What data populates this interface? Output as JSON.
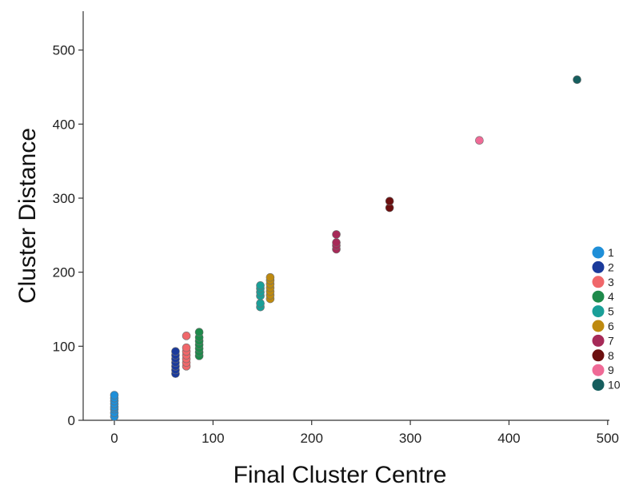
{
  "chart_data": {
    "type": "scatter",
    "title": "",
    "xlabel": "Final Cluster Centre",
    "ylabel": "Cluster Distance",
    "xlim": [
      -30,
      520
    ],
    "ylim": [
      0,
      550
    ],
    "xticks": [
      0,
      100,
      200,
      300,
      400,
      500
    ],
    "yticks": [
      0,
      100,
      200,
      300,
      400,
      500
    ],
    "grid": false,
    "legend_position": "right",
    "series": [
      {
        "name": "1",
        "color": "#1f8fd8",
        "points": [
          [
            0,
            5
          ],
          [
            0,
            10
          ],
          [
            0,
            15
          ],
          [
            0,
            18
          ],
          [
            0,
            22
          ],
          [
            0,
            26
          ],
          [
            0,
            30
          ],
          [
            0,
            34
          ]
        ]
      },
      {
        "name": "2",
        "color": "#1b3a9b",
        "points": [
          [
            62,
            63
          ],
          [
            62,
            68
          ],
          [
            62,
            73
          ],
          [
            62,
            78
          ],
          [
            62,
            83
          ],
          [
            62,
            88
          ],
          [
            62,
            93
          ]
        ]
      },
      {
        "name": "3",
        "color": "#f0676a",
        "points": [
          [
            73,
            73
          ],
          [
            73,
            78
          ],
          [
            73,
            83
          ],
          [
            73,
            88
          ],
          [
            73,
            93
          ],
          [
            73,
            98
          ],
          [
            73,
            114
          ]
        ]
      },
      {
        "name": "4",
        "color": "#1e8a4b",
        "points": [
          [
            86,
            87
          ],
          [
            86,
            92
          ],
          [
            86,
            97
          ],
          [
            86,
            102
          ],
          [
            86,
            107
          ],
          [
            86,
            112
          ],
          [
            86,
            119
          ]
        ]
      },
      {
        "name": "5",
        "color": "#1a9f98",
        "points": [
          [
            148,
            153
          ],
          [
            148,
            158
          ],
          [
            148,
            168
          ],
          [
            148,
            173
          ],
          [
            148,
            178
          ],
          [
            148,
            182
          ]
        ]
      },
      {
        "name": "6",
        "color": "#be8a10",
        "points": [
          [
            158,
            164
          ],
          [
            158,
            169
          ],
          [
            158,
            174
          ],
          [
            158,
            179
          ],
          [
            158,
            184
          ],
          [
            158,
            189
          ],
          [
            158,
            193
          ]
        ]
      },
      {
        "name": "7",
        "color": "#a62a58",
        "points": [
          [
            225,
            231
          ],
          [
            225,
            236
          ],
          [
            225,
            240
          ],
          [
            225,
            251
          ]
        ]
      },
      {
        "name": "8",
        "color": "#6b0f0f",
        "points": [
          [
            279,
            287
          ],
          [
            279,
            296
          ]
        ]
      },
      {
        "name": "9",
        "color": "#ef6a96",
        "points": [
          [
            370,
            378
          ]
        ]
      },
      {
        "name": "10",
        "color": "#165e5e",
        "points": [
          [
            469,
            460
          ]
        ]
      }
    ]
  }
}
